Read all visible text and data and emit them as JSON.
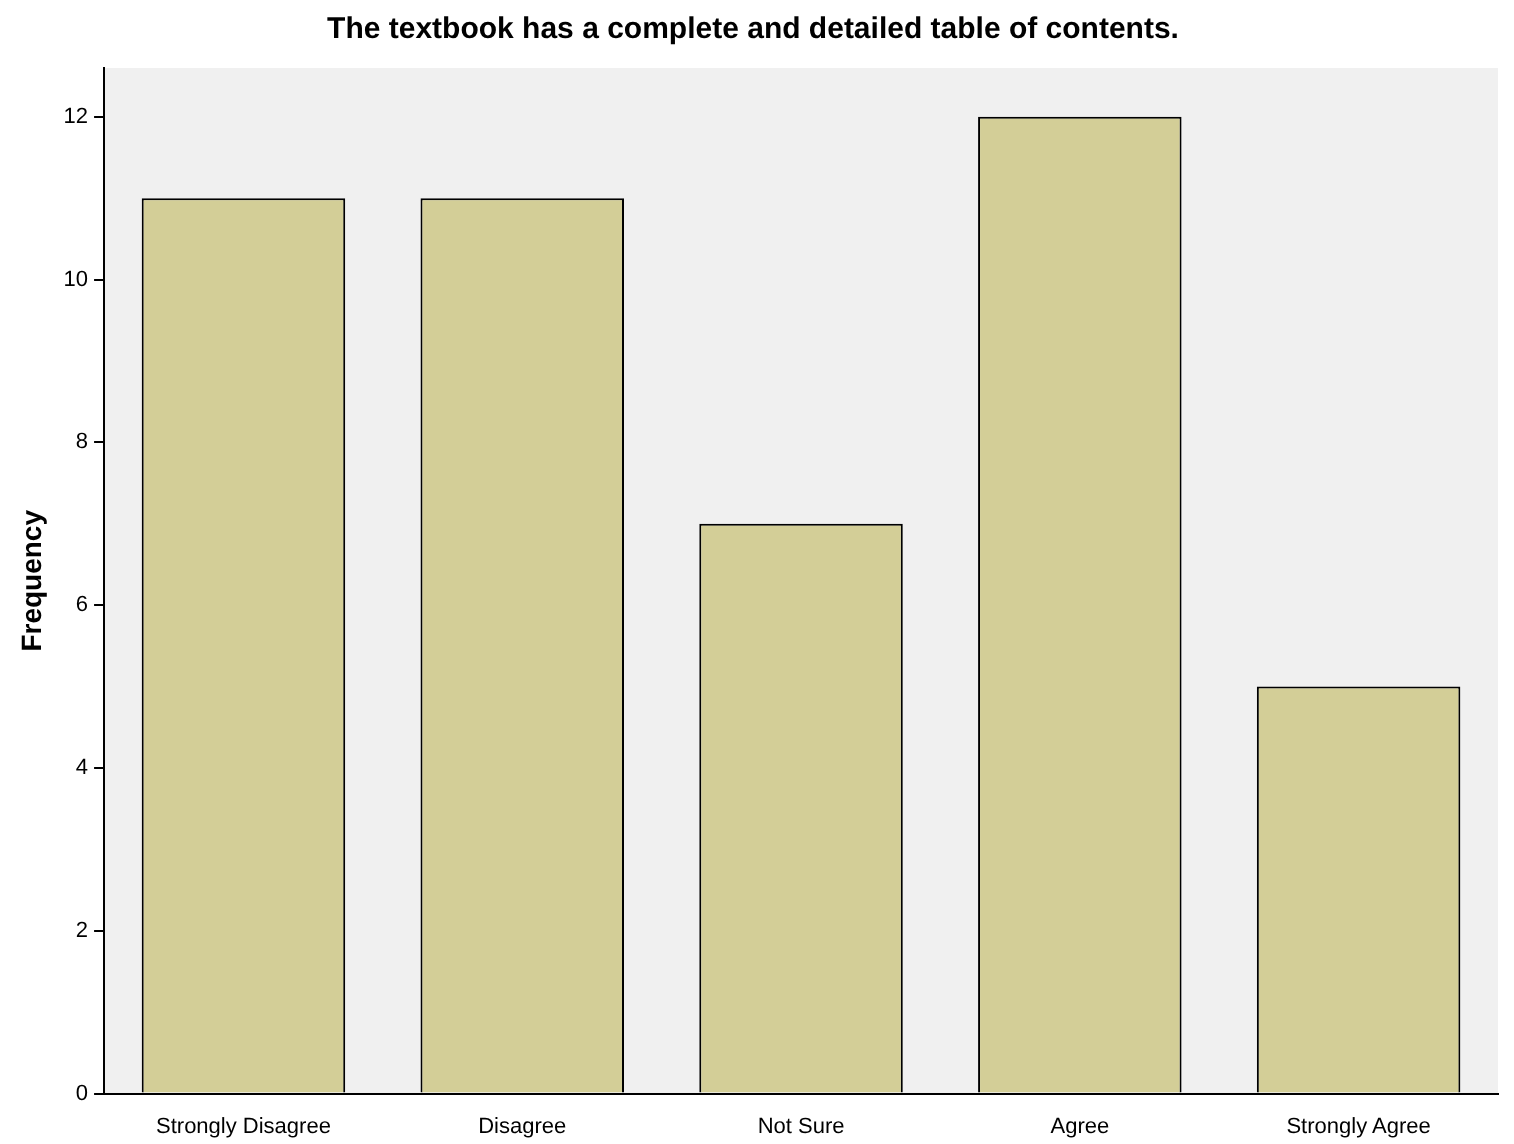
{
  "chart_data": {
    "type": "bar",
    "title": "The textbook has a complete and detailed table of contents.",
    "ylabel": "Frequency",
    "categories": [
      "Strongly Disagree",
      "Disagree",
      "Not Sure",
      "Agree",
      "Strongly Agree"
    ],
    "values": [
      11,
      11,
      7,
      12,
      5
    ],
    "color": "#d3ce97",
    "ylim": [
      0,
      12.6
    ],
    "yticks": [
      0,
      2,
      4,
      6,
      8,
      10,
      12
    ],
    "grid": false,
    "legend": false
  }
}
